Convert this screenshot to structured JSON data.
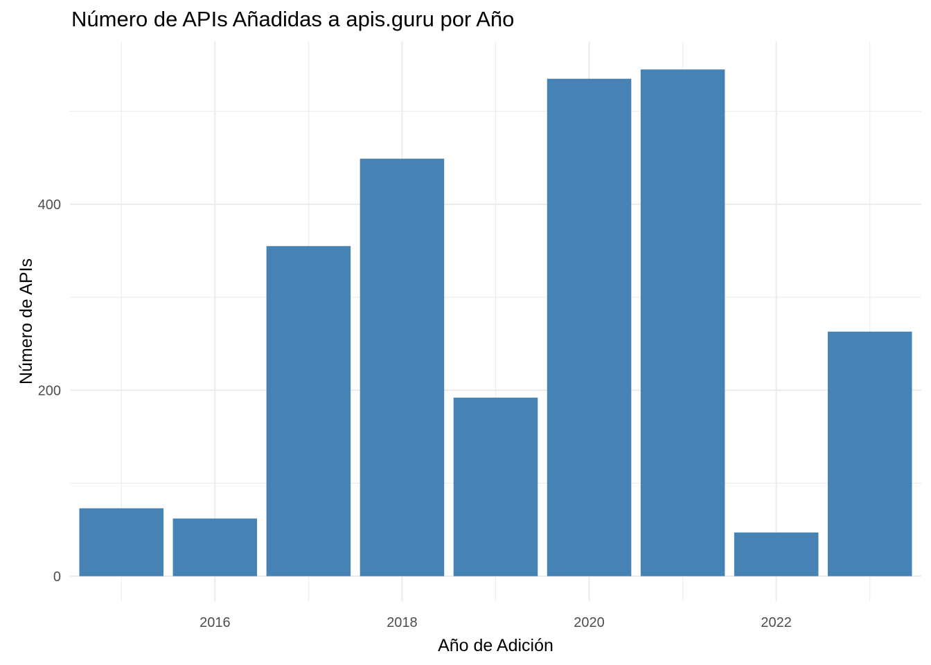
{
  "chart_data": {
    "type": "bar",
    "title": "Número de APIs Añadidas a apis.guru por Año",
    "xlabel": "Año de Adición",
    "ylabel": "Número de APIs",
    "categories": [
      2015,
      2016,
      2017,
      2018,
      2019,
      2020,
      2021,
      2022,
      2023
    ],
    "values": [
      73,
      62,
      355,
      449,
      192,
      535,
      545,
      47,
      263
    ],
    "x_ticks": [
      2016,
      2018,
      2020,
      2022
    ],
    "x_tick_labels": [
      "2016",
      "2018",
      "2020",
      "2022"
    ],
    "y_ticks": [
      0,
      200,
      400
    ],
    "y_tick_labels": [
      "0",
      "200",
      "400"
    ],
    "xlim": [
      2014.45,
      2023.55
    ],
    "ylim": [
      -27,
      575
    ],
    "grid": true,
    "legend": "none",
    "bar_color": "#4682B4",
    "grid_color": "#EBEBEB"
  }
}
